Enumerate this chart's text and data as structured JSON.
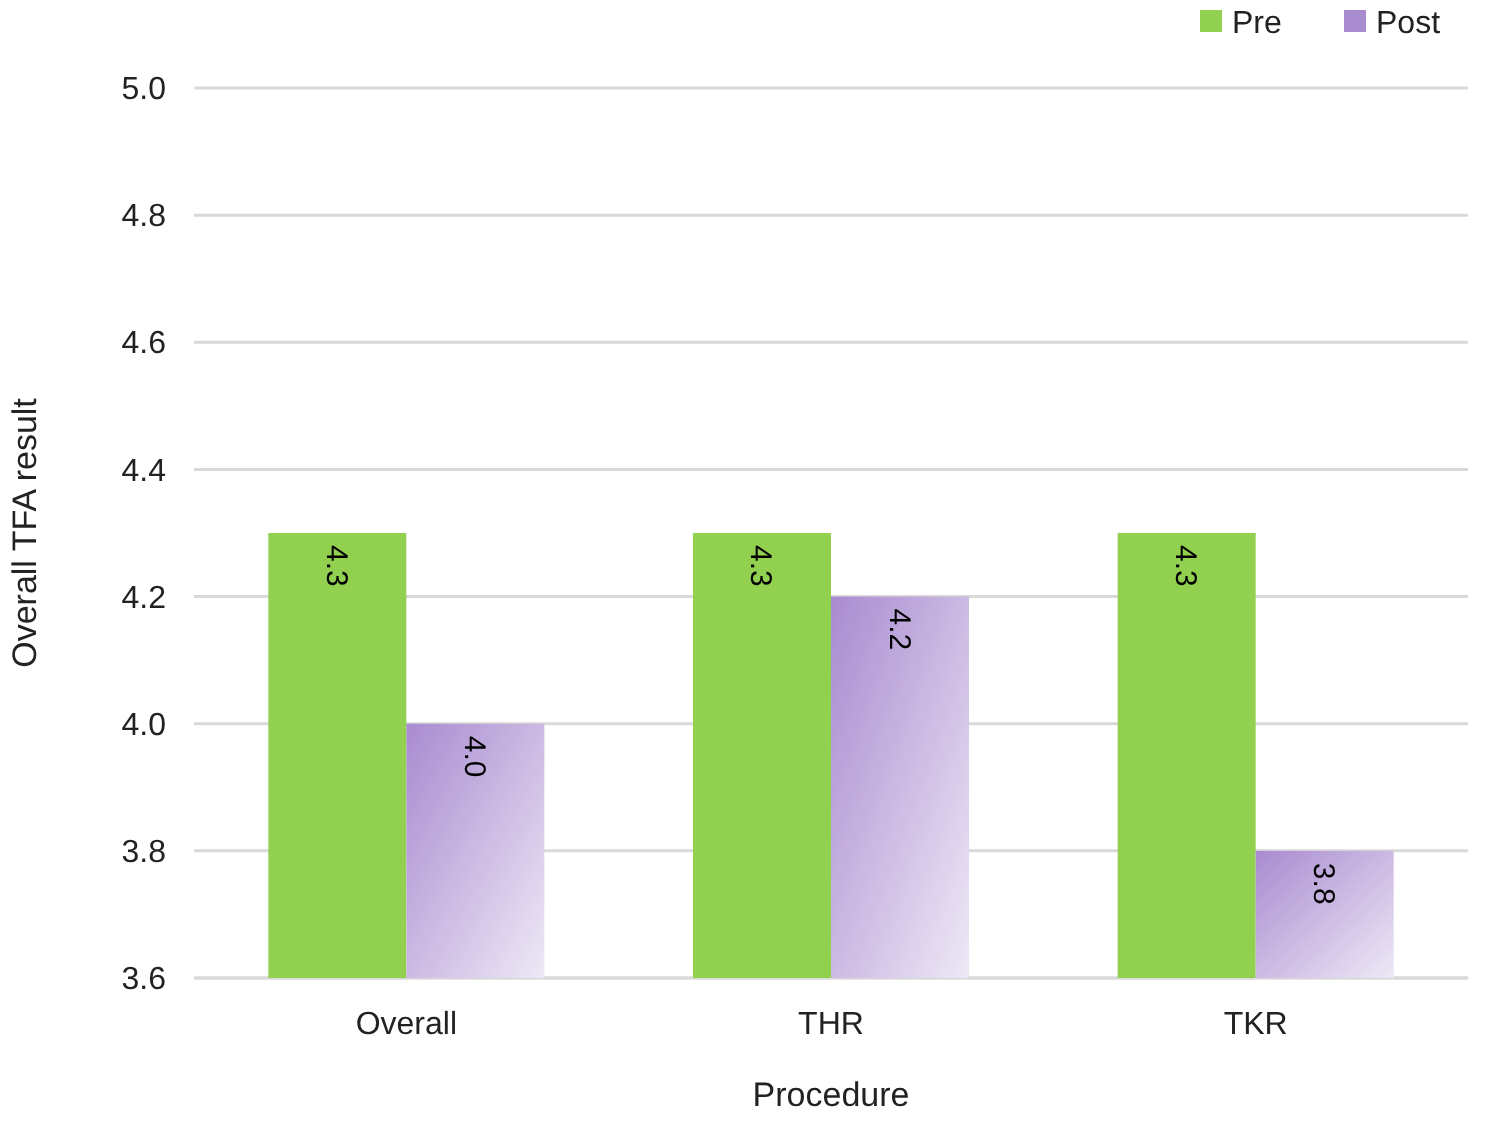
{
  "chart_data": {
    "type": "bar",
    "xlabel": "Procedure",
    "ylabel": "Overall TFA result",
    "categories": [
      "Overall",
      "THR",
      "TKR"
    ],
    "series": [
      {
        "name": "Pre",
        "color": "#92d050",
        "values": [
          4.3,
          4.3,
          4.3
        ],
        "value_labels": [
          "4.3",
          "4.3",
          "4.3"
        ]
      },
      {
        "name": "Post",
        "color": "#a98bd0",
        "values": [
          4.0,
          4.2,
          3.8
        ],
        "value_labels": [
          "4.0",
          "4.2",
          "3.8"
        ]
      }
    ],
    "ylim": [
      3.6,
      5.0
    ],
    "yticks": [
      3.6,
      3.8,
      {
        "value": 4.0,
        "label": "4.0"
      },
      4.2,
      4.4,
      4.6,
      4.8,
      {
        "value": 5.0,
        "label": "5.0"
      }
    ],
    "grid": "y",
    "legend": "top right"
  }
}
